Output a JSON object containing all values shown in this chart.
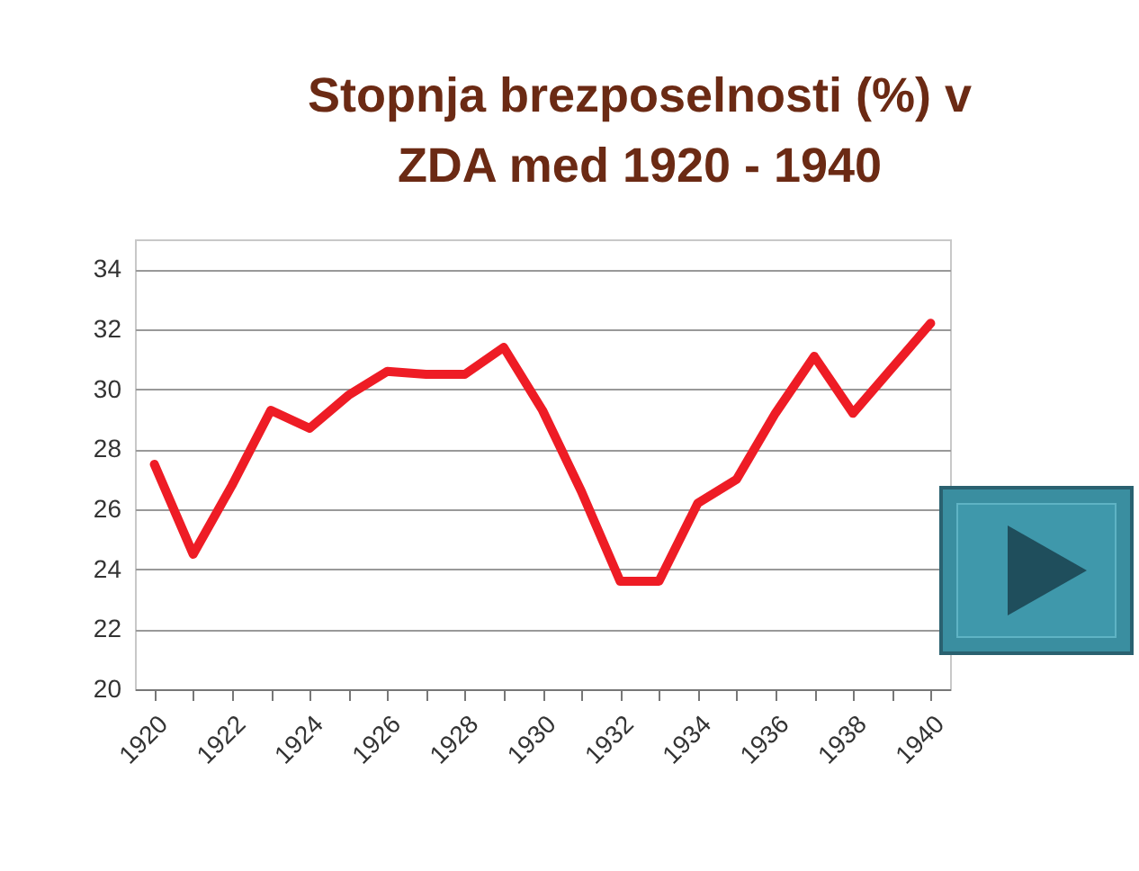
{
  "chart_data": {
    "type": "line",
    "title": "Stopnja brezposelnosti (%) v ZDA med 1920 - 1940",
    "categories": [
      "1920",
      null,
      "1922",
      null,
      "1924",
      null,
      "1926",
      null,
      "1928",
      null,
      "1930",
      null,
      "1932",
      null,
      "1934",
      null,
      "1936",
      null,
      "1938",
      null,
      "1940"
    ],
    "series": [
      {
        "color": "#ee1c25",
        "values": [
          27.5,
          24.5,
          26.8,
          29.3,
          28.7,
          29.8,
          30.6,
          30.5,
          30.5,
          31.4,
          29.3,
          26.6,
          23.6,
          23.6,
          26.2,
          27.0,
          29.2,
          31.1,
          29.2,
          30.7,
          32.2
        ]
      }
    ],
    "ylim": [
      20,
      35
    ],
    "yticks": [
      20,
      22,
      24,
      26,
      28,
      30,
      32,
      34
    ],
    "grid": "y",
    "legend": false
  }
}
